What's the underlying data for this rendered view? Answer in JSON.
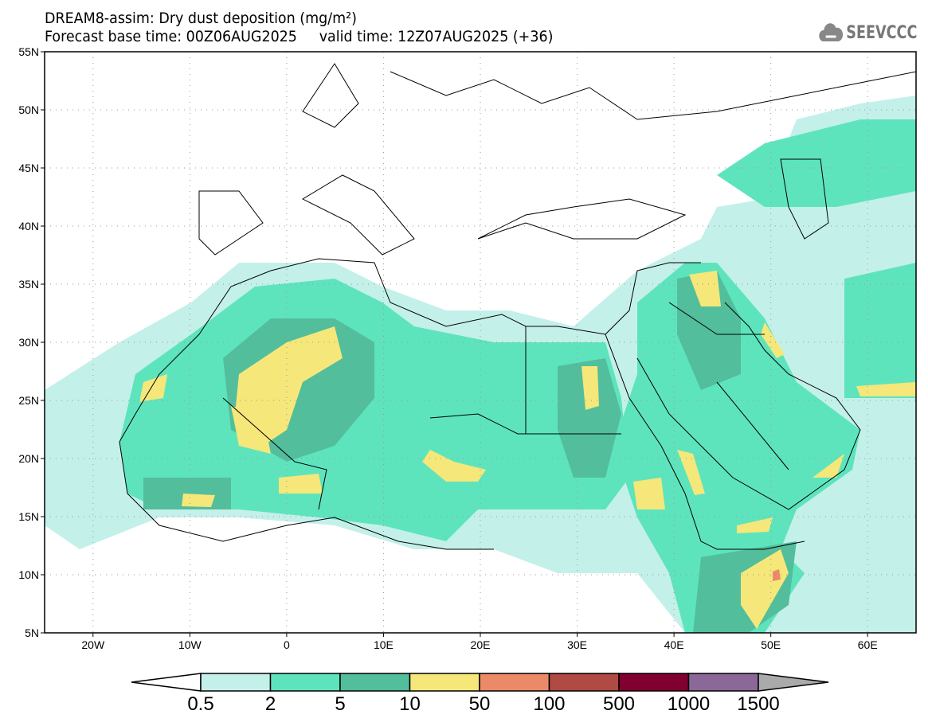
{
  "header": {
    "title": "DREAM8-assim: Dry dust deposition (mg/m²)",
    "subtitle": "Forecast base time: 00Z06AUG2025     valid time: 12Z07AUG2025 (+36)"
  },
  "logo": {
    "text": "SEEVCCC",
    "icon": "cloud-icon"
  },
  "map": {
    "lat_labels": [
      "55N",
      "50N",
      "45N",
      "40N",
      "35N",
      "30N",
      "25N",
      "20N",
      "15N",
      "10N",
      "5N"
    ],
    "lon_labels": [
      "20W",
      "10W",
      "0",
      "10E",
      "20E",
      "30E",
      "40E",
      "50E",
      "60E"
    ],
    "lon_range": [
      -25,
      65
    ],
    "lat_range": [
      5,
      55
    ]
  },
  "legend": {
    "levels": [
      "0.5",
      "2",
      "5",
      "10",
      "50",
      "100",
      "500",
      "1000",
      "1500"
    ],
    "colors": [
      "#c4f0ea",
      "#5ee4bd",
      "#52be9b",
      "#f5e77a",
      "#eb8a68",
      "#af4b43",
      "#800030",
      "#8c6899"
    ],
    "under_color": "#ffffff",
    "over_color": "#aaaaaa"
  }
}
